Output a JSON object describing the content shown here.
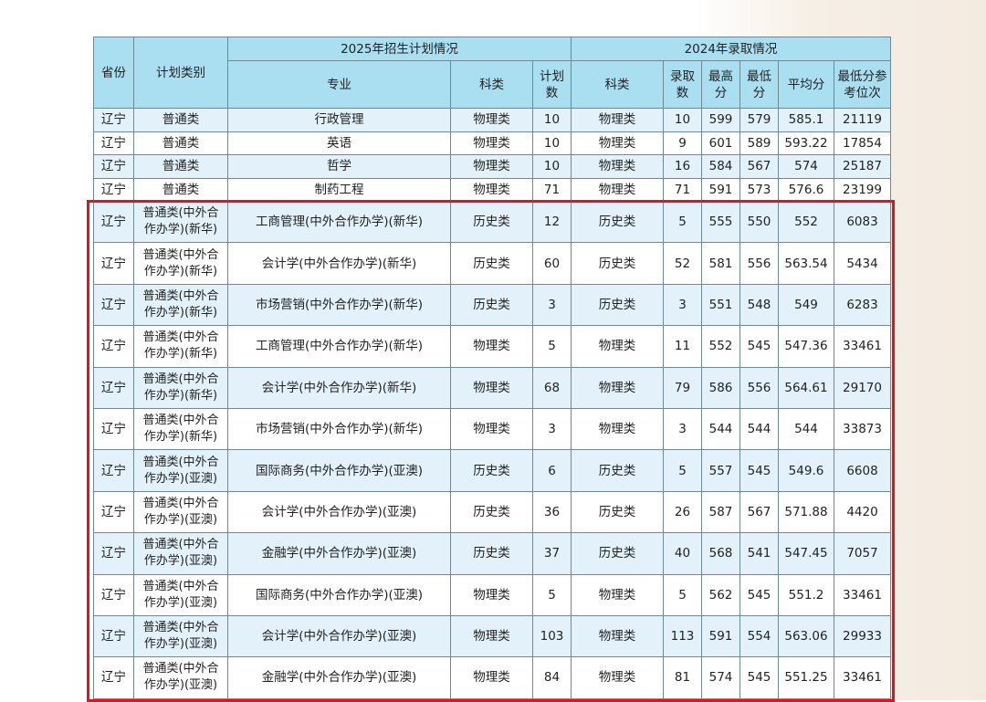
{
  "headers": {
    "province": "省份",
    "plan_type": "计划类别",
    "group_2025": "2025年招生计划情况",
    "group_2024": "2024年录取情况",
    "major": "专业",
    "subject_2025": "科类",
    "plan_count": "计划数",
    "subject_2024": "科类",
    "admitted": "录取数",
    "max": "最高分",
    "min": "最低分",
    "avg": "平均分",
    "min_rank": "最低分参考位次"
  },
  "rows": [
    [
      "辽宁",
      "普通类",
      "行政管理",
      "物理类",
      "10",
      "物理类",
      "10",
      "599",
      "579",
      "585.1",
      "21119"
    ],
    [
      "辽宁",
      "普通类",
      "英语",
      "物理类",
      "10",
      "物理类",
      "9",
      "601",
      "589",
      "593.22",
      "17854"
    ],
    [
      "辽宁",
      "普通类",
      "哲学",
      "物理类",
      "10",
      "物理类",
      "16",
      "584",
      "567",
      "574",
      "25187"
    ],
    [
      "辽宁",
      "普通类",
      "制药工程",
      "物理类",
      "71",
      "物理类",
      "71",
      "591",
      "573",
      "576.6",
      "23199"
    ],
    [
      "辽宁",
      "普通类(中外合作办学)(新华)",
      "工商管理(中外合作办学)(新华)",
      "历史类",
      "12",
      "历史类",
      "5",
      "555",
      "550",
      "552",
      "6083"
    ],
    [
      "辽宁",
      "普通类(中外合作办学)(新华)",
      "会计学(中外合作办学)(新华)",
      "历史类",
      "60",
      "历史类",
      "52",
      "581",
      "556",
      "563.54",
      "5434"
    ],
    [
      "辽宁",
      "普通类(中外合作办学)(新华)",
      "市场营销(中外合作办学)(新华)",
      "历史类",
      "3",
      "历史类",
      "3",
      "551",
      "548",
      "549",
      "6283"
    ],
    [
      "辽宁",
      "普通类(中外合作办学)(新华)",
      "工商管理(中外合作办学)(新华)",
      "物理类",
      "5",
      "物理类",
      "11",
      "552",
      "545",
      "547.36",
      "33461"
    ],
    [
      "辽宁",
      "普通类(中外合作办学)(新华)",
      "会计学(中外合作办学)(新华)",
      "物理类",
      "68",
      "物理类",
      "79",
      "586",
      "556",
      "564.61",
      "29170"
    ],
    [
      "辽宁",
      "普通类(中外合作办学)(新华)",
      "市场营销(中外合作办学)(新华)",
      "物理类",
      "3",
      "物理类",
      "3",
      "544",
      "544",
      "544",
      "33873"
    ],
    [
      "辽宁",
      "普通类(中外合作办学)(亚澳)",
      "国际商务(中外合作办学)(亚澳)",
      "历史类",
      "6",
      "历史类",
      "5",
      "557",
      "545",
      "549.6",
      "6608"
    ],
    [
      "辽宁",
      "普通类(中外合作办学)(亚澳)",
      "会计学(中外合作办学)(亚澳)",
      "历史类",
      "36",
      "历史类",
      "26",
      "587",
      "567",
      "571.88",
      "4420"
    ],
    [
      "辽宁",
      "普通类(中外合作办学)(亚澳)",
      "金融学(中外合作办学)(亚澳)",
      "历史类",
      "37",
      "历史类",
      "40",
      "568",
      "541",
      "547.45",
      "7057"
    ],
    [
      "辽宁",
      "普通类(中外合作办学)(亚澳)",
      "国际商务(中外合作办学)(亚澳)",
      "物理类",
      "5",
      "物理类",
      "5",
      "562",
      "545",
      "551.2",
      "33461"
    ],
    [
      "辽宁",
      "普通类(中外合作办学)(亚澳)",
      "会计学(中外合作办学)(亚澳)",
      "物理类",
      "103",
      "物理类",
      "113",
      "591",
      "554",
      "563.06",
      "29933"
    ],
    [
      "辽宁",
      "普通类(中外合作办学)(亚澳)",
      "金融学(中外合作办学)(亚澳)",
      "物理类",
      "84",
      "物理类",
      "81",
      "574",
      "545",
      "551.25",
      "33461"
    ]
  ],
  "colors": {
    "header_bg": "#aadff1",
    "row_alt_bg": "#e2f1fa",
    "highlight_border": "#e0141e"
  }
}
